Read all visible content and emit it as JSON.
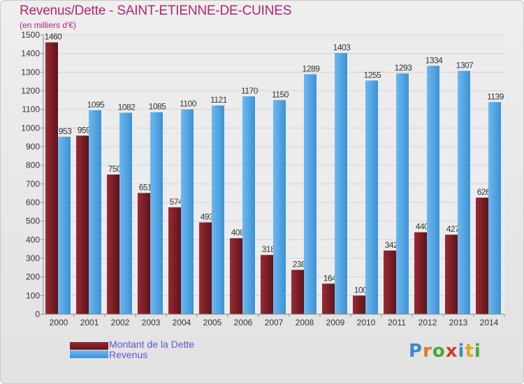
{
  "chart_data": {
    "type": "bar",
    "title": "Revenus/Dette - SAINT-ETIENNE-DE-CUINES",
    "subtitle": "(en milliers d'€)",
    "categories": [
      "2000",
      "2001",
      "2002",
      "2003",
      "2004",
      "2005",
      "2006",
      "2007",
      "2008",
      "2009",
      "2010",
      "2011",
      "2012",
      "2013",
      "2014"
    ],
    "series": [
      {
        "name": "Montant de la Dette",
        "color": "#7a1f27",
        "values": [
          1460,
          959,
          750,
          651,
          574,
          493,
          408,
          318,
          238,
          164,
          100,
          342,
          440,
          427,
          626
        ]
      },
      {
        "name": "Revenus",
        "color": "#4ea6e6",
        "values": [
          953,
          1095,
          1082,
          1085,
          1100,
          1121,
          1170,
          1150,
          1289,
          1403,
          1255,
          1293,
          1334,
          1307,
          1139
        ]
      }
    ],
    "ylim": [
      0,
      1500
    ],
    "yticks": [
      0,
      100,
      200,
      300,
      400,
      500,
      600,
      700,
      800,
      900,
      1000,
      1100,
      1200,
      1300,
      1400,
      1500
    ],
    "grid": true
  },
  "legend": {
    "debt_label": "Montant de la Dette",
    "revenue_label": "Revenus"
  },
  "logo": {
    "text": "Proxiti"
  }
}
